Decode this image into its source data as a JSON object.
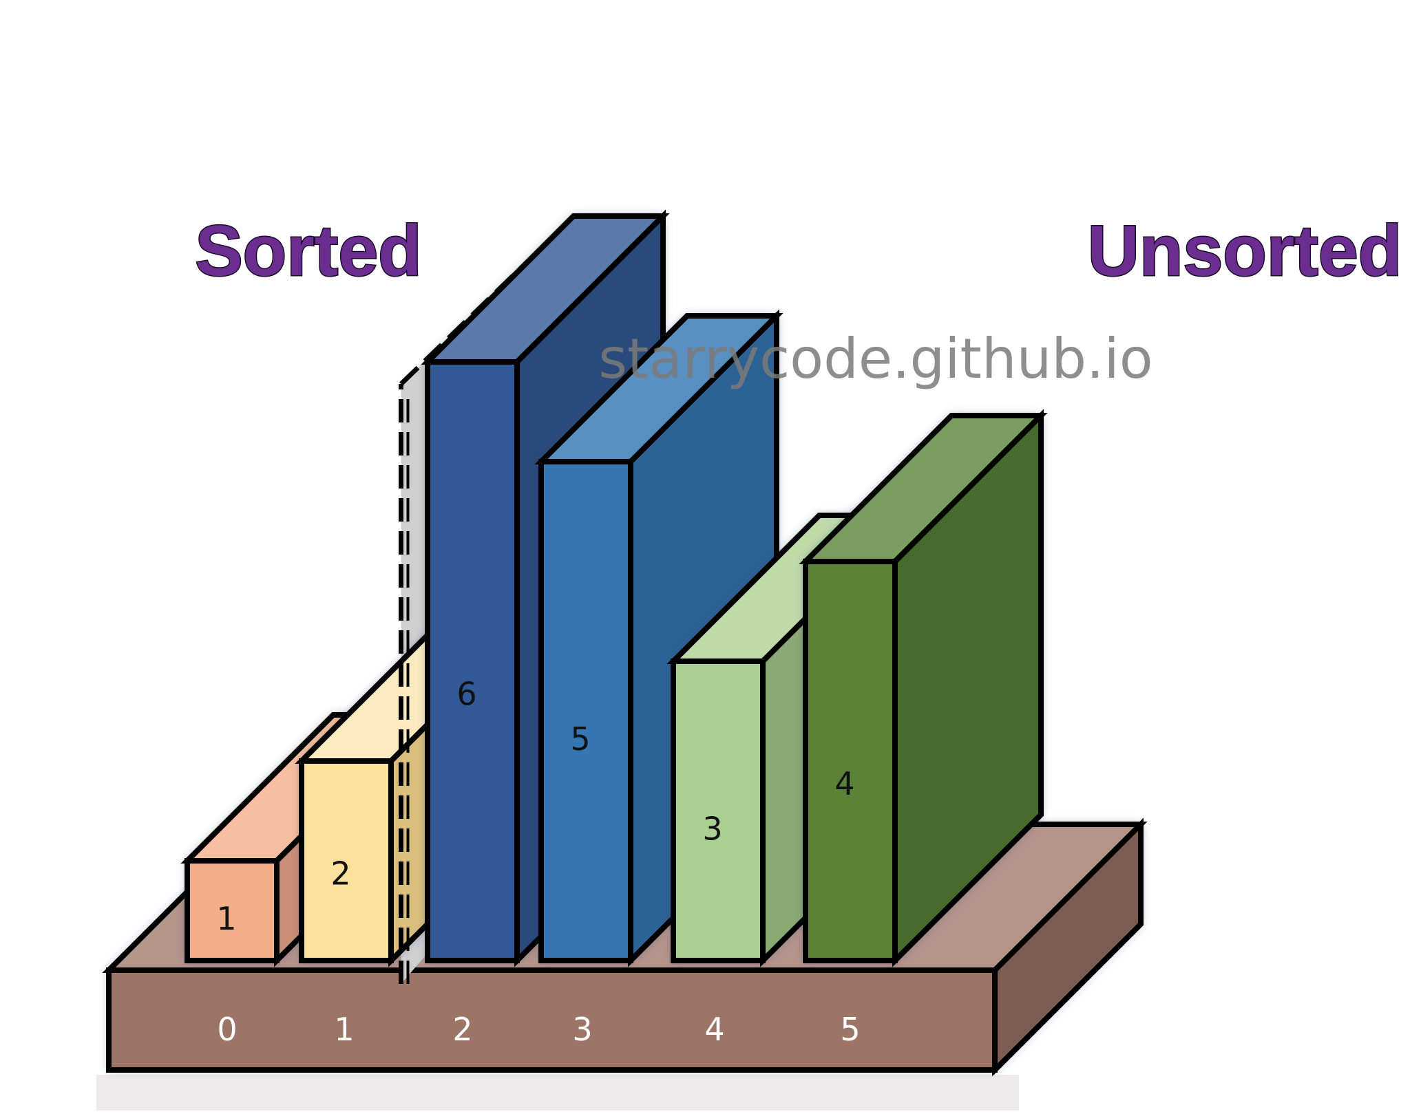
{
  "labels": {
    "sorted": "Sorted",
    "unsorted": "Unsorted"
  },
  "watermark": "starrycode.github.io",
  "colors": {
    "label_fill": "#6B2D90",
    "label_stroke": "#1a0d26",
    "base_front": "#9C7567",
    "base_top": "#B5948A",
    "base_side": "#7D5D51",
    "divider_fill": "#CFCFCF"
  },
  "chart_data": {
    "type": "bar",
    "categories": [
      "0",
      "1",
      "2",
      "3",
      "4",
      "5"
    ],
    "values": [
      1,
      2,
      6,
      5,
      3,
      4
    ],
    "value_labels": [
      "1",
      "2",
      "6",
      "5",
      "3",
      "4"
    ],
    "index_labels": [
      "0",
      "1",
      "2",
      "3",
      "4",
      "5"
    ],
    "sorted_count": 2,
    "bar_colors": [
      {
        "front": "#F2AE88",
        "top": "#F5BE9E",
        "side": "#C99075"
      },
      {
        "front": "#FCE19C",
        "top": "#FDEABF",
        "side": "#D9BE7E"
      },
      {
        "front": "#325A96",
        "top": "#5A78A9",
        "side": "#2A4A7B"
      },
      {
        "front": "#3577B5",
        "top": "#5A8FC2",
        "side": "#2C6294"
      },
      {
        "front": "#ABCF91",
        "top": "#BEDAA9",
        "side": "#8AAA74"
      },
      {
        "front": "#5A8338",
        "top": "#7A9C5F",
        "side": "#476A2D"
      }
    ]
  }
}
